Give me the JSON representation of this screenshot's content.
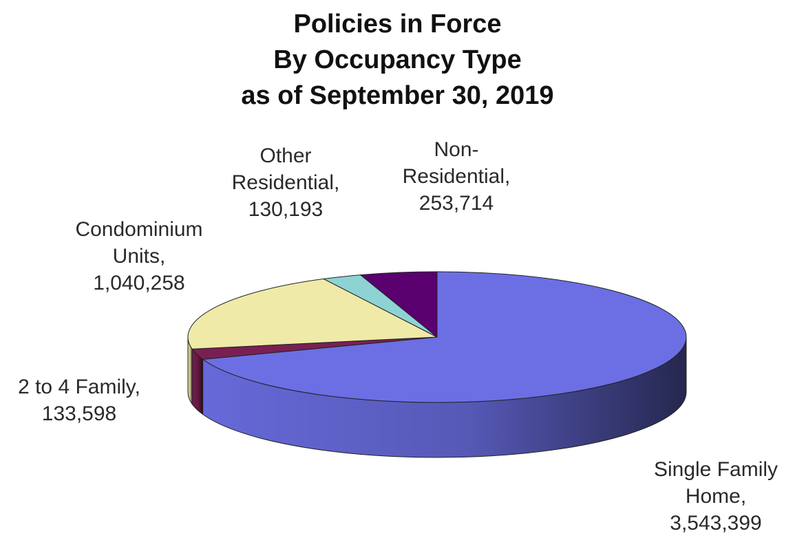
{
  "chart_data": {
    "type": "pie",
    "title": [
      "Policies in Force",
      "By Occupancy Type",
      "as of September 30, 2019"
    ],
    "slices": [
      {
        "name": "Single Family Home",
        "value": 3543399,
        "color": "#6b6fe3",
        "label_lines": [
          "Single Family",
          "Home,",
          "3,543,399"
        ]
      },
      {
        "name": "2 to 4 Family",
        "value": 133598,
        "color": "#7a1f52",
        "label_lines": [
          "2 to 4 Family,",
          "133,598"
        ]
      },
      {
        "name": "Condominium Units",
        "value": 1040258,
        "color": "#efeaa8",
        "label_lines": [
          "Condominium",
          "Units,",
          "1,040,258"
        ]
      },
      {
        "name": "Other Residential",
        "value": 130193,
        "color": "#8ed3d3",
        "label_lines": [
          "Other",
          "Residential,",
          "130,193"
        ]
      },
      {
        "name": "Non-Residential",
        "value": 253714,
        "color": "#5a006f",
        "label_lines": [
          "Non-",
          "Residential,",
          "253,714"
        ]
      }
    ],
    "style": "3d-tilted",
    "legend": "none"
  }
}
